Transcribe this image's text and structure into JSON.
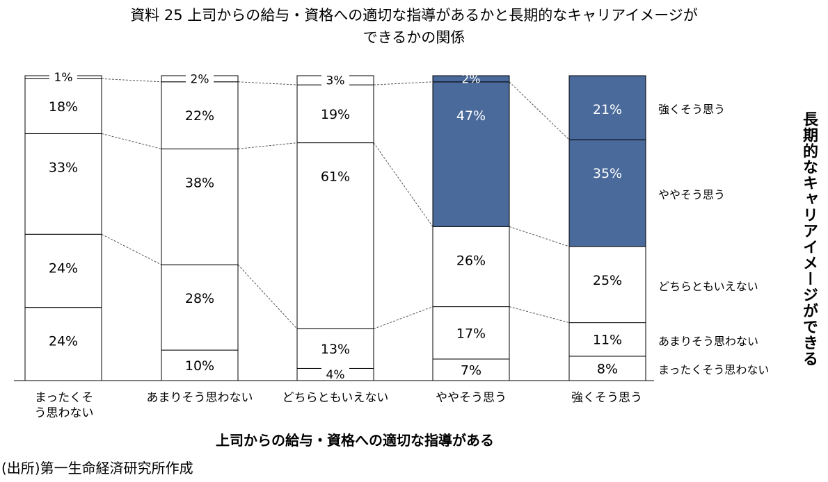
{
  "title": {
    "line1": "資料 25  上司からの給与・資格への適切な指導があるかと長期的なキャリアイメージが",
    "line2": "できるかの関係"
  },
  "source": "(出所)第一生命経済研究所作成",
  "chart_data": {
    "type": "bar",
    "stacked": true,
    "percent": true,
    "xlabel": "上司からの給与・資格への適切な指導がある",
    "ylabel": "長期的なキャリアイメージができる",
    "categories": [
      "まったくそう思わない",
      "あまりそう思わない",
      "どちらともいえない",
      "ややそう思う",
      "強くそう思う"
    ],
    "category_display": [
      [
        "まったくそ",
        "う思わない"
      ],
      [
        "あまりそう思わない"
      ],
      [
        "どちらともいえない"
      ],
      [
        "ややそう思う"
      ],
      [
        "強くそう思う"
      ]
    ],
    "series": [
      {
        "name": "まったくそう思わない",
        "values": [
          24,
          10,
          4,
          7,
          8
        ]
      },
      {
        "name": "あまりそう思わない",
        "values": [
          24,
          28,
          13,
          17,
          11
        ]
      },
      {
        "name": "どちらともいえない",
        "values": [
          33,
          38,
          61,
          26,
          25
        ]
      },
      {
        "name": "ややそう思う",
        "values": [
          18,
          22,
          19,
          47,
          35
        ]
      },
      {
        "name": "強くそう思う",
        "values": [
          1,
          2,
          3,
          2,
          21
        ]
      }
    ],
    "highlight_color": "#4a6a9b",
    "highlight": [
      [
        false,
        false,
        false,
        false,
        false
      ],
      [
        false,
        false,
        false,
        false,
        false
      ],
      [
        false,
        false,
        false,
        false,
        false
      ],
      [
        false,
        false,
        false,
        true,
        true
      ],
      [
        false,
        false,
        false,
        true,
        true
      ]
    ],
    "ylim": [
      0,
      100
    ]
  }
}
